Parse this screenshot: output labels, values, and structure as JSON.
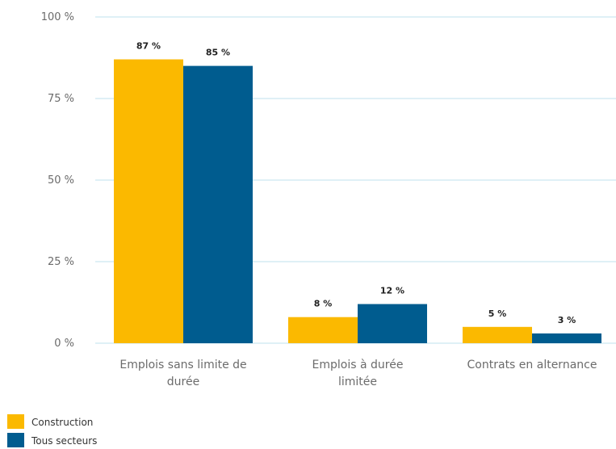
{
  "chart_data": {
    "type": "bar",
    "categories": [
      "Emplois sans limite de durée",
      "Emplois à durée limitée",
      "Contrats en alternance"
    ],
    "category_lines": [
      [
        "Emplois sans limite de",
        "durée"
      ],
      [
        "Emplois à durée",
        "limitée"
      ],
      [
        "Contrats en alternance"
      ]
    ],
    "series": [
      {
        "name": "Construction",
        "values": [
          87,
          8,
          5
        ],
        "labels": [
          "87 %",
          "8 %",
          "5 %"
        ],
        "color": "#fbb900"
      },
      {
        "name": "Tous secteurs",
        "values": [
          85,
          12,
          3
        ],
        "labels": [
          "85 %",
          "12 %",
          "3 %"
        ],
        "color": "#005c8f"
      }
    ],
    "ylim": [
      0,
      100
    ],
    "yticks": [
      0,
      25,
      50,
      75,
      100
    ],
    "ytick_labels": [
      "0 %",
      "25 %",
      "50 %",
      "75 %",
      "100 %"
    ],
    "grid": true,
    "grid_color": "#bfe0ec",
    "legend_position": "bottom-left"
  }
}
